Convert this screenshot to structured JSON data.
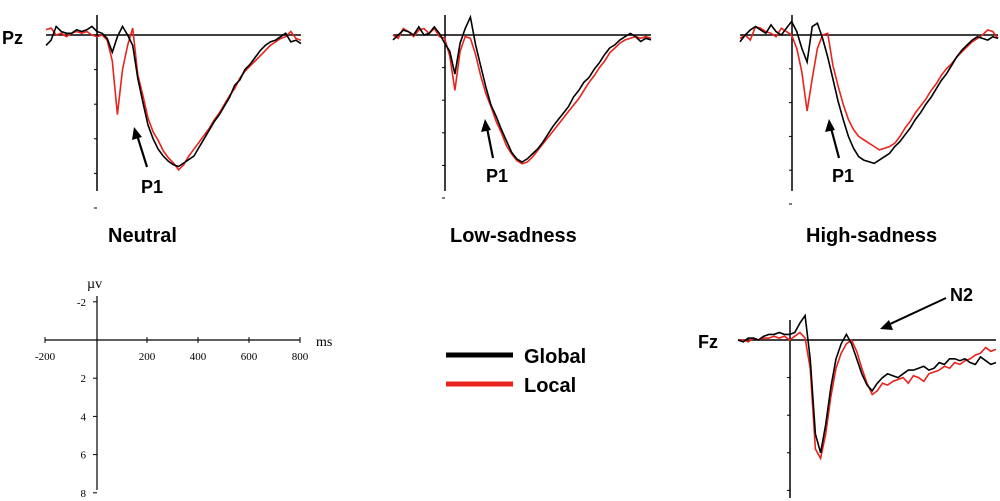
{
  "figure": {
    "legend": [
      {
        "name": "Global",
        "color": "#000000"
      },
      {
        "name": "Local",
        "color": "#e8231d"
      }
    ],
    "scale_axis": {
      "x_unit": "ms",
      "y_unit": "µv",
      "x_ticks": [
        "-200",
        "200",
        "400",
        "600",
        "800"
      ],
      "y_ticks": [
        "-2",
        "2",
        "4",
        "6",
        "8"
      ]
    }
  },
  "chart_data": [
    {
      "type": "line",
      "electrode": "Pz",
      "condition": "Neutral",
      "annotation": "P1",
      "xlim": [
        -200,
        800
      ],
      "ylim": [
        8,
        -2
      ],
      "series": [
        {
          "name": "Global",
          "color": "#000000",
          "x": [
            -200,
            -180,
            -160,
            -140,
            -120,
            -100,
            -80,
            -60,
            -40,
            -20,
            0,
            20,
            40,
            60,
            80,
            100,
            120,
            140,
            160,
            180,
            200,
            220,
            240,
            260,
            280,
            300,
            320,
            340,
            360,
            380,
            400,
            420,
            440,
            460,
            480,
            500,
            520,
            540,
            560,
            580,
            600,
            620,
            640,
            660,
            680,
            700,
            720,
            740,
            760,
            780,
            800
          ],
          "y": [
            0.6,
            0.3,
            -0.5,
            -0.2,
            -0.1,
            -0.1,
            -0.3,
            -0.2,
            -0.3,
            -0.5,
            -0.2,
            -0.1,
            0.2,
            1.0,
            0.1,
            -0.5,
            0.0,
            0.6,
            2.5,
            3.9,
            5.2,
            6.0,
            6.6,
            7.0,
            7.3,
            7.5,
            7.6,
            7.4,
            7.2,
            7.0,
            6.5,
            6.0,
            5.5,
            5.0,
            4.6,
            4.1,
            3.6,
            2.9,
            2.6,
            2.0,
            1.7,
            1.3,
            0.9,
            0.6,
            0.4,
            0.3,
            0.1,
            -0.1,
            0.4,
            0.3,
            0.5
          ]
        },
        {
          "name": "Local",
          "color": "#e8231d",
          "x": [
            -200,
            -180,
            -160,
            -140,
            -120,
            -100,
            -80,
            -60,
            -40,
            -20,
            0,
            20,
            40,
            60,
            80,
            100,
            120,
            140,
            160,
            180,
            200,
            220,
            240,
            260,
            280,
            300,
            320,
            340,
            360,
            380,
            400,
            420,
            440,
            460,
            480,
            500,
            520,
            540,
            560,
            580,
            600,
            620,
            640,
            660,
            680,
            700,
            720,
            740,
            760,
            780,
            800
          ],
          "y": [
            -0.3,
            -0.4,
            0.0,
            -0.1,
            0.1,
            -0.1,
            -0.2,
            -0.1,
            -0.2,
            0.0,
            0.1,
            0.0,
            0.3,
            1.5,
            4.6,
            2.0,
            0.6,
            -0.4,
            2.3,
            3.5,
            4.8,
            5.6,
            6.1,
            6.7,
            7.1,
            7.4,
            7.8,
            7.5,
            7.0,
            6.6,
            6.2,
            5.8,
            5.4,
            4.9,
            4.5,
            4.0,
            3.5,
            3.1,
            2.5,
            2.1,
            1.8,
            1.5,
            1.2,
            0.9,
            0.6,
            0.4,
            0.2,
            0.1,
            -0.2,
            0.2,
            0.3
          ]
        }
      ]
    },
    {
      "type": "line",
      "electrode": "",
      "condition": "Low-sadness",
      "annotation": "P1",
      "xlim": [
        -200,
        800
      ],
      "ylim": [
        8,
        -2
      ],
      "series": [
        {
          "name": "Global",
          "color": "#000000",
          "x": [
            -200,
            -180,
            -160,
            -140,
            -120,
            -100,
            -80,
            -60,
            -40,
            -20,
            0,
            20,
            40,
            60,
            80,
            100,
            120,
            140,
            160,
            180,
            200,
            220,
            240,
            260,
            280,
            300,
            320,
            340,
            360,
            380,
            400,
            420,
            440,
            460,
            480,
            500,
            520,
            540,
            560,
            580,
            600,
            620,
            640,
            660,
            680,
            700,
            720,
            740,
            760,
            780,
            800
          ],
          "y": [
            0.3,
            0.0,
            -0.3,
            -0.2,
            0.0,
            -0.5,
            0.0,
            -0.1,
            -0.5,
            -0.1,
            0.5,
            1.0,
            2.4,
            0.5,
            -0.4,
            -1.1,
            0.6,
            1.9,
            3.2,
            4.3,
            5.0,
            5.8,
            6.5,
            7.2,
            7.6,
            7.8,
            7.6,
            7.3,
            7.0,
            6.6,
            6.1,
            5.6,
            5.2,
            4.8,
            4.4,
            3.8,
            3.4,
            2.9,
            2.6,
            2.1,
            1.7,
            1.2,
            0.8,
            0.6,
            0.3,
            0.1,
            -0.1,
            0.1,
            0.4,
            0.2,
            0.3
          ]
        },
        {
          "name": "Local",
          "color": "#e8231d",
          "x": [
            -200,
            -180,
            -160,
            -140,
            -120,
            -100,
            -80,
            -60,
            -40,
            -20,
            0,
            20,
            40,
            60,
            80,
            100,
            120,
            140,
            160,
            180,
            200,
            220,
            240,
            260,
            280,
            300,
            320,
            340,
            360,
            380,
            400,
            420,
            440,
            460,
            480,
            500,
            520,
            540,
            560,
            580,
            600,
            620,
            640,
            660,
            680,
            700,
            720,
            740,
            760,
            780,
            800
          ],
          "y": [
            0.0,
            0.2,
            -0.4,
            -0.2,
            0.1,
            -0.3,
            -0.4,
            -0.1,
            -0.4,
            0.1,
            0.2,
            1.3,
            3.4,
            1.0,
            0.1,
            0.2,
            1.2,
            2.5,
            3.6,
            4.4,
            5.3,
            6.0,
            6.8,
            7.3,
            7.7,
            7.9,
            7.8,
            7.5,
            7.1,
            6.7,
            6.3,
            5.9,
            5.5,
            5.1,
            4.7,
            4.3,
            3.9,
            3.4,
            2.9,
            2.5,
            2.0,
            1.6,
            1.1,
            0.8,
            0.5,
            0.3,
            0.2,
            0.1,
            0.2,
            0.1,
            0.2
          ]
        }
      ]
    },
    {
      "type": "line",
      "electrode": "",
      "condition": "High-sadness",
      "annotation": "P1",
      "xlim": [
        -200,
        800
      ],
      "ylim": [
        8,
        -2
      ],
      "series": [
        {
          "name": "Global",
          "color": "#000000",
          "x": [
            -200,
            -180,
            -160,
            -140,
            -120,
            -100,
            -80,
            -60,
            -40,
            -20,
            0,
            20,
            40,
            60,
            80,
            100,
            120,
            140,
            160,
            180,
            200,
            220,
            240,
            260,
            280,
            300,
            320,
            340,
            360,
            380,
            400,
            420,
            440,
            460,
            480,
            500,
            520,
            540,
            560,
            580,
            600,
            620,
            640,
            660,
            680,
            700,
            720,
            740,
            760,
            780,
            800
          ],
          "y": [
            0.4,
            0.0,
            -0.3,
            -0.5,
            -0.3,
            -0.1,
            -0.6,
            -0.2,
            0.0,
            -0.4,
            -0.8,
            -0.2,
            0.8,
            1.6,
            -0.5,
            -0.7,
            0.2,
            1.3,
            2.6,
            3.9,
            5.0,
            6.0,
            6.7,
            7.2,
            7.4,
            7.5,
            7.6,
            7.4,
            7.2,
            7.0,
            6.6,
            6.3,
            5.9,
            5.5,
            5.0,
            4.6,
            4.1,
            3.7,
            3.2,
            2.7,
            2.3,
            1.8,
            1.3,
            0.9,
            0.6,
            0.3,
            0.1,
            0.2,
            0.3,
            0.1,
            0.2
          ]
        },
        {
          "name": "Local",
          "color": "#e8231d",
          "x": [
            -200,
            -180,
            -160,
            -140,
            -120,
            -100,
            -80,
            -60,
            -40,
            -20,
            0,
            20,
            40,
            60,
            80,
            100,
            120,
            140,
            160,
            180,
            200,
            220,
            240,
            260,
            280,
            300,
            320,
            340,
            360,
            380,
            400,
            420,
            440,
            460,
            480,
            500,
            520,
            540,
            560,
            580,
            600,
            620,
            640,
            660,
            680,
            700,
            720,
            740,
            760,
            780,
            800
          ],
          "y": [
            0.2,
            0.0,
            0.3,
            -0.5,
            -0.4,
            -0.2,
            -0.1,
            0.1,
            -0.4,
            -0.2,
            0.0,
            0.8,
            2.2,
            4.5,
            2.6,
            0.8,
            0.0,
            -0.1,
            1.8,
            3.0,
            4.1,
            5.0,
            5.6,
            6.0,
            6.2,
            6.4,
            6.6,
            6.8,
            6.7,
            6.6,
            6.4,
            6.0,
            5.5,
            5.1,
            4.6,
            4.2,
            3.8,
            3.3,
            2.9,
            2.4,
            2.0,
            1.7,
            1.3,
            1.0,
            0.7,
            0.4,
            0.2,
            0.0,
            -0.3,
            -0.2,
            0.2
          ]
        }
      ]
    },
    {
      "type": "line",
      "electrode": "Fz",
      "condition": "",
      "annotation": "N2",
      "xlim": [
        -200,
        800
      ],
      "ylim": [
        8,
        -2
      ],
      "series": [
        {
          "name": "Global",
          "color": "#000000",
          "x": [
            -200,
            -180,
            -160,
            -140,
            -120,
            -100,
            -80,
            -60,
            -40,
            -20,
            0,
            20,
            40,
            60,
            80,
            100,
            120,
            140,
            160,
            180,
            200,
            220,
            240,
            260,
            280,
            300,
            320,
            340,
            360,
            380,
            400,
            420,
            440,
            460,
            480,
            500,
            520,
            540,
            560,
            580,
            600,
            620,
            640,
            660,
            680,
            700,
            720,
            740,
            760,
            780,
            800
          ],
          "y": [
            0.0,
            0.1,
            -0.1,
            -0.1,
            0.0,
            -0.2,
            -0.3,
            -0.3,
            -0.4,
            -0.3,
            -0.3,
            -0.4,
            -0.9,
            -1.3,
            1.0,
            5.0,
            6.0,
            4.5,
            2.5,
            1.0,
            0.2,
            -0.3,
            0.2,
            1.0,
            1.8,
            2.4,
            2.7,
            2.3,
            2.0,
            1.8,
            1.9,
            2.0,
            1.8,
            1.6,
            1.6,
            1.5,
            1.4,
            1.6,
            1.5,
            1.2,
            1.3,
            1.0,
            1.0,
            1.1,
            1.0,
            1.2,
            1.3,
            0.9,
            1.1,
            1.3,
            1.2
          ]
        },
        {
          "name": "Local",
          "color": "#e8231d",
          "x": [
            -200,
            -180,
            -160,
            -140,
            -120,
            -100,
            -80,
            -60,
            -40,
            -20,
            0,
            20,
            40,
            60,
            80,
            100,
            120,
            140,
            160,
            180,
            200,
            220,
            240,
            260,
            280,
            300,
            320,
            340,
            360,
            380,
            400,
            420,
            440,
            460,
            480,
            500,
            520,
            540,
            560,
            580,
            600,
            620,
            640,
            660,
            680,
            700,
            720,
            740,
            760,
            780,
            800
          ],
          "y": [
            0.0,
            0.0,
            0.1,
            -0.1,
            0.0,
            -0.1,
            -0.1,
            -0.2,
            -0.1,
            -0.2,
            0.0,
            -0.2,
            -0.4,
            -0.1,
            1.5,
            5.8,
            6.3,
            5.0,
            3.0,
            1.5,
            0.7,
            0.2,
            0.0,
            0.6,
            1.5,
            2.3,
            2.9,
            2.7,
            2.3,
            2.4,
            2.2,
            2.1,
            2.0,
            2.3,
            1.9,
            2.0,
            2.2,
            1.8,
            1.7,
            1.6,
            1.4,
            1.5,
            1.2,
            1.3,
            1.1,
            1.0,
            0.8,
            0.7,
            0.4,
            0.6,
            0.5
          ]
        }
      ]
    }
  ]
}
